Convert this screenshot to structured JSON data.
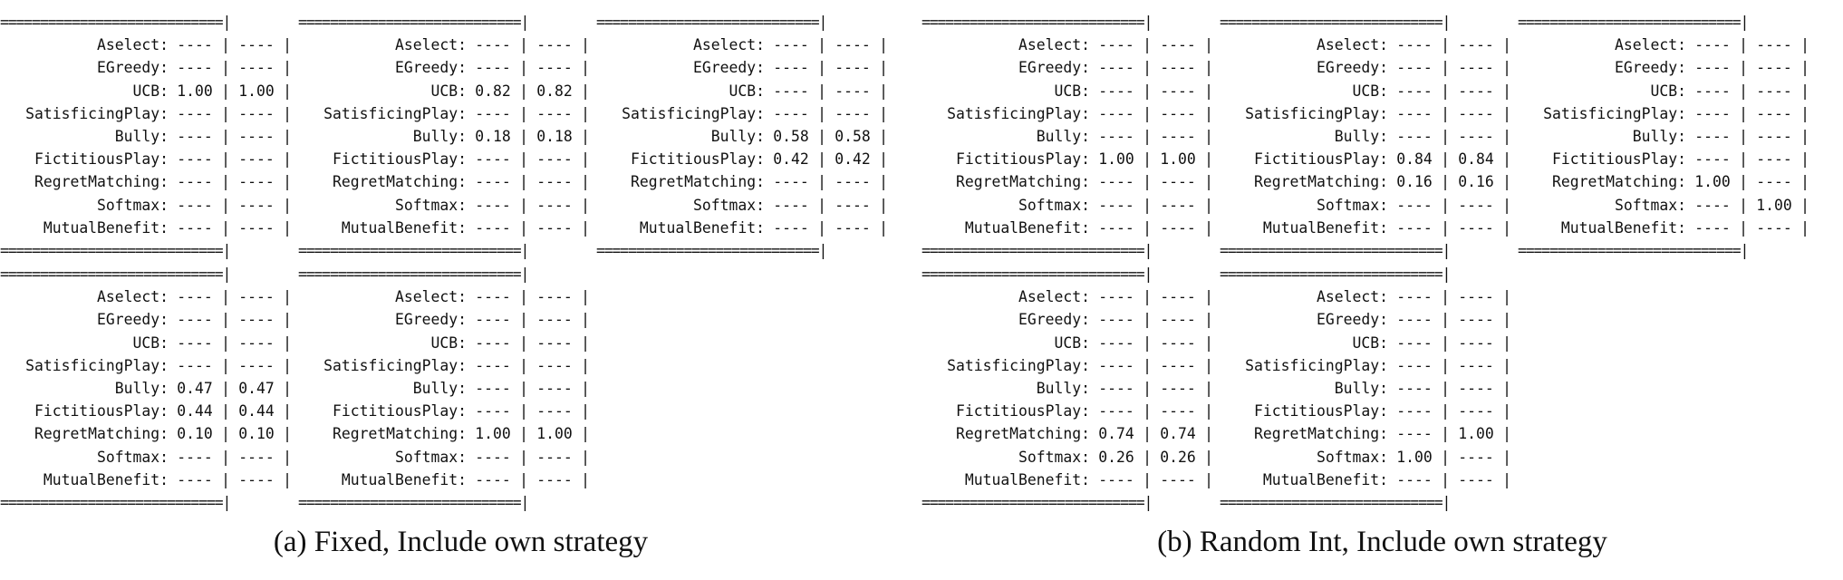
{
  "figure": {
    "separator": "============================|",
    "panels": [
      {
        "caption": "(a) Fixed, Include own strategy",
        "tables": [
          {
            "rows": [
              {
                "strategy": "Aselect:",
                "v1": "----",
                "v2": "----"
              },
              {
                "strategy": "EGreedy:",
                "v1": "----",
                "v2": "----"
              },
              {
                "strategy": "UCB:",
                "v1": "1.00",
                "v2": "1.00"
              },
              {
                "strategy": "SatisficingPlay:",
                "v1": "----",
                "v2": "----"
              },
              {
                "strategy": "Bully:",
                "v1": "----",
                "v2": "----"
              },
              {
                "strategy": "FictitiousPlay:",
                "v1": "----",
                "v2": "----"
              },
              {
                "strategy": "RegretMatching:",
                "v1": "----",
                "v2": "----"
              },
              {
                "strategy": "Softmax:",
                "v1": "----",
                "v2": "----"
              },
              {
                "strategy": "MutualBenefit:",
                "v1": "----",
                "v2": "----"
              }
            ]
          },
          {
            "rows": [
              {
                "strategy": "Aselect:",
                "v1": "----",
                "v2": "----"
              },
              {
                "strategy": "EGreedy:",
                "v1": "----",
                "v2": "----"
              },
              {
                "strategy": "UCB:",
                "v1": "0.82",
                "v2": "0.82"
              },
              {
                "strategy": "SatisficingPlay:",
                "v1": "----",
                "v2": "----"
              },
              {
                "strategy": "Bully:",
                "v1": "0.18",
                "v2": "0.18"
              },
              {
                "strategy": "FictitiousPlay:",
                "v1": "----",
                "v2": "----"
              },
              {
                "strategy": "RegretMatching:",
                "v1": "----",
                "v2": "----"
              },
              {
                "strategy": "Softmax:",
                "v1": "----",
                "v2": "----"
              },
              {
                "strategy": "MutualBenefit:",
                "v1": "----",
                "v2": "----"
              }
            ]
          },
          {
            "rows": [
              {
                "strategy": "Aselect:",
                "v1": "----",
                "v2": "----"
              },
              {
                "strategy": "EGreedy:",
                "v1": "----",
                "v2": "----"
              },
              {
                "strategy": "UCB:",
                "v1": "----",
                "v2": "----"
              },
              {
                "strategy": "SatisficingPlay:",
                "v1": "----",
                "v2": "----"
              },
              {
                "strategy": "Bully:",
                "v1": "0.58",
                "v2": "0.58"
              },
              {
                "strategy": "FictitiousPlay:",
                "v1": "0.42",
                "v2": "0.42"
              },
              {
                "strategy": "RegretMatching:",
                "v1": "----",
                "v2": "----"
              },
              {
                "strategy": "Softmax:",
                "v1": "----",
                "v2": "----"
              },
              {
                "strategy": "MutualBenefit:",
                "v1": "----",
                "v2": "----"
              }
            ]
          },
          {
            "rows": [
              {
                "strategy": "Aselect:",
                "v1": "----",
                "v2": "----"
              },
              {
                "strategy": "EGreedy:",
                "v1": "----",
                "v2": "----"
              },
              {
                "strategy": "UCB:",
                "v1": "----",
                "v2": "----"
              },
              {
                "strategy": "SatisficingPlay:",
                "v1": "----",
                "v2": "----"
              },
              {
                "strategy": "Bully:",
                "v1": "0.47",
                "v2": "0.47"
              },
              {
                "strategy": "FictitiousPlay:",
                "v1": "0.44",
                "v2": "0.44"
              },
              {
                "strategy": "RegretMatching:",
                "v1": "0.10",
                "v2": "0.10"
              },
              {
                "strategy": "Softmax:",
                "v1": "----",
                "v2": "----"
              },
              {
                "strategy": "MutualBenefit:",
                "v1": "----",
                "v2": "----"
              }
            ]
          },
          {
            "rows": [
              {
                "strategy": "Aselect:",
                "v1": "----",
                "v2": "----"
              },
              {
                "strategy": "EGreedy:",
                "v1": "----",
                "v2": "----"
              },
              {
                "strategy": "UCB:",
                "v1": "----",
                "v2": "----"
              },
              {
                "strategy": "SatisficingPlay:",
                "v1": "----",
                "v2": "----"
              },
              {
                "strategy": "Bully:",
                "v1": "----",
                "v2": "----"
              },
              {
                "strategy": "FictitiousPlay:",
                "v1": "----",
                "v2": "----"
              },
              {
                "strategy": "RegretMatching:",
                "v1": "1.00",
                "v2": "1.00"
              },
              {
                "strategy": "Softmax:",
                "v1": "----",
                "v2": "----"
              },
              {
                "strategy": "MutualBenefit:",
                "v1": "----",
                "v2": "----"
              }
            ]
          }
        ]
      },
      {
        "caption": "(b) Random Int, Include own strategy",
        "tables": [
          {
            "rows": [
              {
                "strategy": "Aselect:",
                "v1": "----",
                "v2": "----"
              },
              {
                "strategy": "EGreedy:",
                "v1": "----",
                "v2": "----"
              },
              {
                "strategy": "UCB:",
                "v1": "----",
                "v2": "----"
              },
              {
                "strategy": "SatisficingPlay:",
                "v1": "----",
                "v2": "----"
              },
              {
                "strategy": "Bully:",
                "v1": "----",
                "v2": "----"
              },
              {
                "strategy": "FictitiousPlay:",
                "v1": "1.00",
                "v2": "1.00"
              },
              {
                "strategy": "RegretMatching:",
                "v1": "----",
                "v2": "----"
              },
              {
                "strategy": "Softmax:",
                "v1": "----",
                "v2": "----"
              },
              {
                "strategy": "MutualBenefit:",
                "v1": "----",
                "v2": "----"
              }
            ]
          },
          {
            "rows": [
              {
                "strategy": "Aselect:",
                "v1": "----",
                "v2": "----"
              },
              {
                "strategy": "EGreedy:",
                "v1": "----",
                "v2": "----"
              },
              {
                "strategy": "UCB:",
                "v1": "----",
                "v2": "----"
              },
              {
                "strategy": "SatisficingPlay:",
                "v1": "----",
                "v2": "----"
              },
              {
                "strategy": "Bully:",
                "v1": "----",
                "v2": "----"
              },
              {
                "strategy": "FictitiousPlay:",
                "v1": "0.84",
                "v2": "0.84"
              },
              {
                "strategy": "RegretMatching:",
                "v1": "0.16",
                "v2": "0.16"
              },
              {
                "strategy": "Softmax:",
                "v1": "----",
                "v2": "----"
              },
              {
                "strategy": "MutualBenefit:",
                "v1": "----",
                "v2": "----"
              }
            ]
          },
          {
            "rows": [
              {
                "strategy": "Aselect:",
                "v1": "----",
                "v2": "----"
              },
              {
                "strategy": "EGreedy:",
                "v1": "----",
                "v2": "----"
              },
              {
                "strategy": "UCB:",
                "v1": "----",
                "v2": "----"
              },
              {
                "strategy": "SatisficingPlay:",
                "v1": "----",
                "v2": "----"
              },
              {
                "strategy": "Bully:",
                "v1": "----",
                "v2": "----"
              },
              {
                "strategy": "FictitiousPlay:",
                "v1": "----",
                "v2": "----"
              },
              {
                "strategy": "RegretMatching:",
                "v1": "1.00",
                "v2": "----"
              },
              {
                "strategy": "Softmax:",
                "v1": "----",
                "v2": "1.00"
              },
              {
                "strategy": "MutualBenefit:",
                "v1": "----",
                "v2": "----"
              }
            ]
          },
          {
            "rows": [
              {
                "strategy": "Aselect:",
                "v1": "----",
                "v2": "----"
              },
              {
                "strategy": "EGreedy:",
                "v1": "----",
                "v2": "----"
              },
              {
                "strategy": "UCB:",
                "v1": "----",
                "v2": "----"
              },
              {
                "strategy": "SatisficingPlay:",
                "v1": "----",
                "v2": "----"
              },
              {
                "strategy": "Bully:",
                "v1": "----",
                "v2": "----"
              },
              {
                "strategy": "FictitiousPlay:",
                "v1": "----",
                "v2": "----"
              },
              {
                "strategy": "RegretMatching:",
                "v1": "0.74",
                "v2": "0.74"
              },
              {
                "strategy": "Softmax:",
                "v1": "0.26",
                "v2": "0.26"
              },
              {
                "strategy": "MutualBenefit:",
                "v1": "----",
                "v2": "----"
              }
            ]
          },
          {
            "rows": [
              {
                "strategy": "Aselect:",
                "v1": "----",
                "v2": "----"
              },
              {
                "strategy": "EGreedy:",
                "v1": "----",
                "v2": "----"
              },
              {
                "strategy": "UCB:",
                "v1": "----",
                "v2": "----"
              },
              {
                "strategy": "SatisficingPlay:",
                "v1": "----",
                "v2": "----"
              },
              {
                "strategy": "Bully:",
                "v1": "----",
                "v2": "----"
              },
              {
                "strategy": "FictitiousPlay:",
                "v1": "----",
                "v2": "----"
              },
              {
                "strategy": "RegretMatching:",
                "v1": "----",
                "v2": "1.00"
              },
              {
                "strategy": "Softmax:",
                "v1": "1.00",
                "v2": "----"
              },
              {
                "strategy": "MutualBenefit:",
                "v1": "----",
                "v2": "----"
              }
            ]
          }
        ]
      }
    ]
  }
}
